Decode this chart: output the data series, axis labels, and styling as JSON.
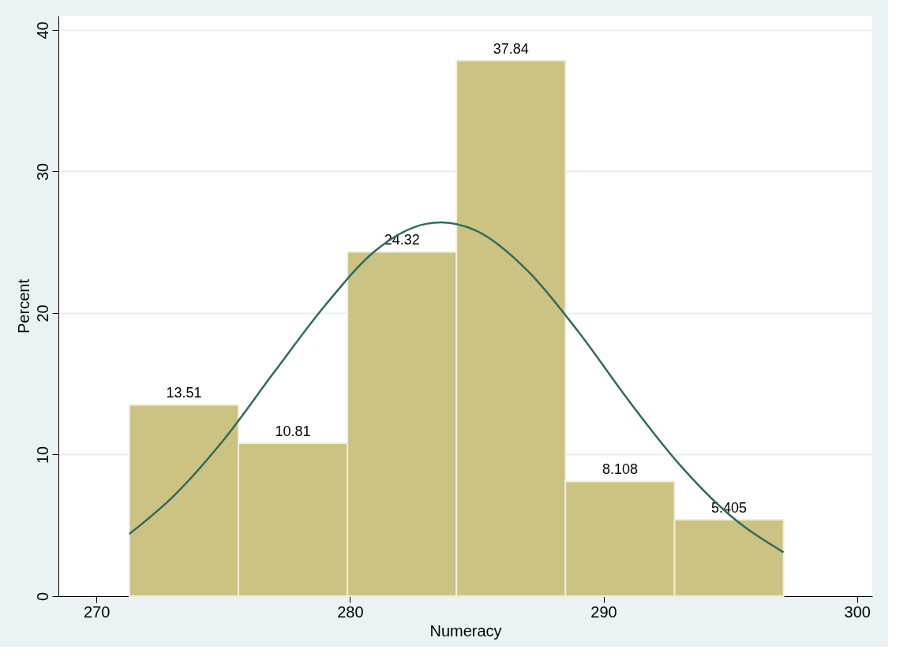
{
  "chart_data": {
    "type": "histogram",
    "xlabel": "Numeracy",
    "ylabel": "Percent",
    "series": [
      {
        "bins": [
          271.3,
          275.6,
          279.9,
          284.2,
          288.5,
          292.8,
          297.1
        ],
        "values": [
          13.51,
          10.81,
          24.32,
          37.84,
          8.108,
          5.405
        ],
        "value_labels": [
          "13.51",
          "10.81",
          "24.32",
          "37.84",
          "8.108",
          "5.405"
        ],
        "color": "#ccc281"
      },
      {
        "type": "line",
        "color": "#2f6b5f",
        "x": [
          271.3,
          273,
          275,
          277,
          279,
          281,
          283,
          283.6,
          285,
          287,
          289,
          291,
          293,
          295,
          297.1
        ],
        "values": [
          4.4,
          7.0,
          11.0,
          15.8,
          20.5,
          24.4,
          26.3,
          26.4,
          25.8,
          23.0,
          18.7,
          13.8,
          9.3,
          5.7,
          3.1
        ]
      }
    ],
    "grid": "y",
    "xlim": [
      268.5,
      300.6
    ],
    "xticks": [
      270,
      280,
      290,
      300
    ],
    "ylim": [
      0,
      41
    ],
    "yticks": [
      0,
      10,
      20,
      30,
      40
    ]
  }
}
